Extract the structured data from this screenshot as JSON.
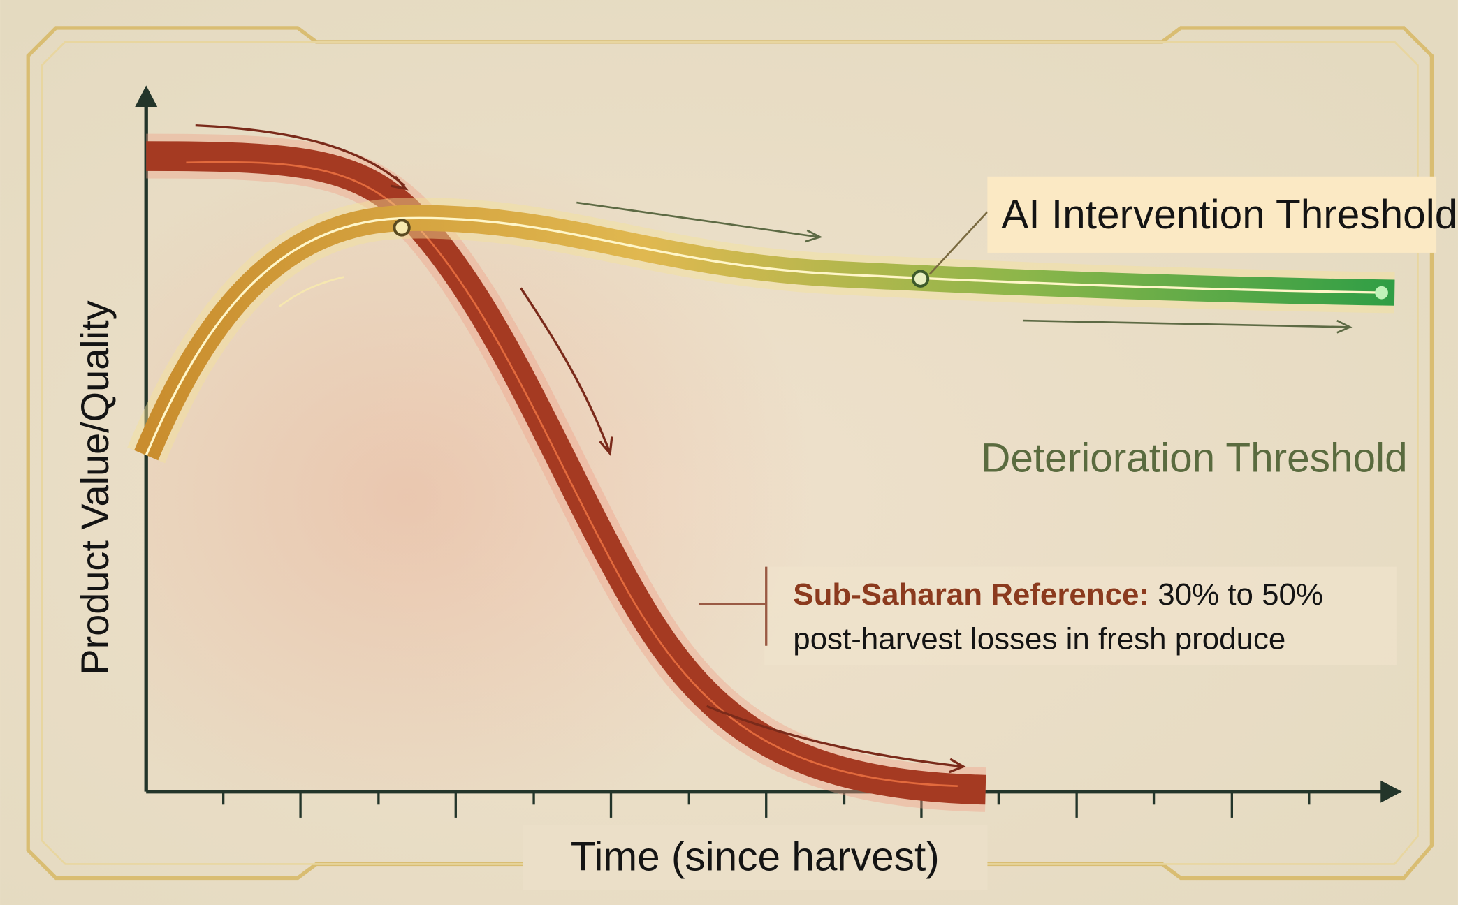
{
  "axes": {
    "y_label": "Product Value/Quality",
    "x_label": "Time (since harvest)"
  },
  "labels": {
    "ai_threshold": "AI Intervention Threshold",
    "deterioration_threshold": "Deterioration Threshold"
  },
  "annotation": {
    "title": "Sub-Saharan Reference:",
    "text_line1": "30% to 50%",
    "text_line2": "post-harvest losses in fresh produce"
  }
}
